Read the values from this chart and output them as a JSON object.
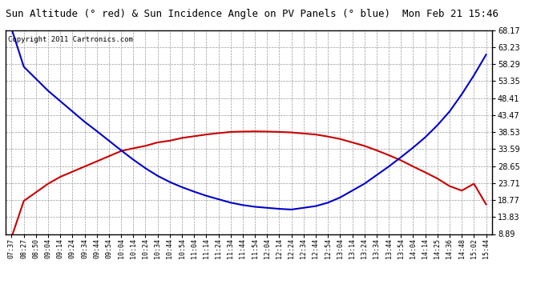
{
  "title": "Sun Altitude (° red) & Sun Incidence Angle on PV Panels (° blue)  Mon Feb 21 15:46",
  "copyright": "Copyright 2011 Cartronics.com",
  "background_color": "#ffffff",
  "plot_bg_color": "#ffffff",
  "grid_color": "#999999",
  "ylim": [
    8.89,
    68.17
  ],
  "yticks": [
    8.89,
    13.83,
    18.77,
    23.71,
    28.65,
    33.59,
    38.53,
    43.47,
    48.41,
    53.35,
    58.29,
    63.23,
    68.17
  ],
  "x_labels": [
    "07:37",
    "08:27",
    "08:50",
    "09:04",
    "09:14",
    "09:24",
    "09:34",
    "09:44",
    "09:54",
    "10:04",
    "10:14",
    "10:24",
    "10:34",
    "10:44",
    "10:54",
    "11:04",
    "11:14",
    "11:24",
    "11:34",
    "11:44",
    "11:54",
    "12:04",
    "12:14",
    "12:24",
    "12:34",
    "12:44",
    "12:54",
    "13:04",
    "13:14",
    "13:24",
    "13:34",
    "13:44",
    "13:54",
    "14:04",
    "14:14",
    "14:25",
    "14:36",
    "14:48",
    "15:02",
    "15:44"
  ],
  "red_values": [
    8.0,
    18.5,
    21.0,
    23.5,
    25.5,
    27.0,
    28.5,
    30.0,
    31.5,
    33.0,
    33.8,
    34.5,
    35.5,
    36.0,
    36.8,
    37.3,
    37.8,
    38.2,
    38.55,
    38.65,
    38.7,
    38.65,
    38.55,
    38.4,
    38.1,
    37.8,
    37.2,
    36.5,
    35.5,
    34.5,
    33.2,
    31.8,
    30.3,
    28.5,
    26.8,
    25.0,
    22.8,
    21.5,
    23.5,
    17.5
  ],
  "blue_values": [
    68.5,
    57.5,
    54.0,
    50.5,
    47.5,
    44.5,
    41.5,
    38.8,
    36.0,
    33.2,
    30.5,
    28.0,
    25.8,
    24.0,
    22.5,
    21.2,
    20.0,
    19.0,
    18.0,
    17.3,
    16.8,
    16.5,
    16.2,
    16.0,
    16.5,
    17.0,
    18.0,
    19.5,
    21.5,
    23.5,
    26.0,
    28.5,
    31.2,
    34.0,
    37.0,
    40.5,
    44.5,
    49.5,
    55.0,
    61.0
  ],
  "red_color": "#cc0000",
  "blue_color": "#0000cc",
  "line_width": 1.5,
  "title_fontsize": 9,
  "copyright_fontsize": 6.5,
  "tick_fontsize": 7,
  "xtick_fontsize": 6
}
